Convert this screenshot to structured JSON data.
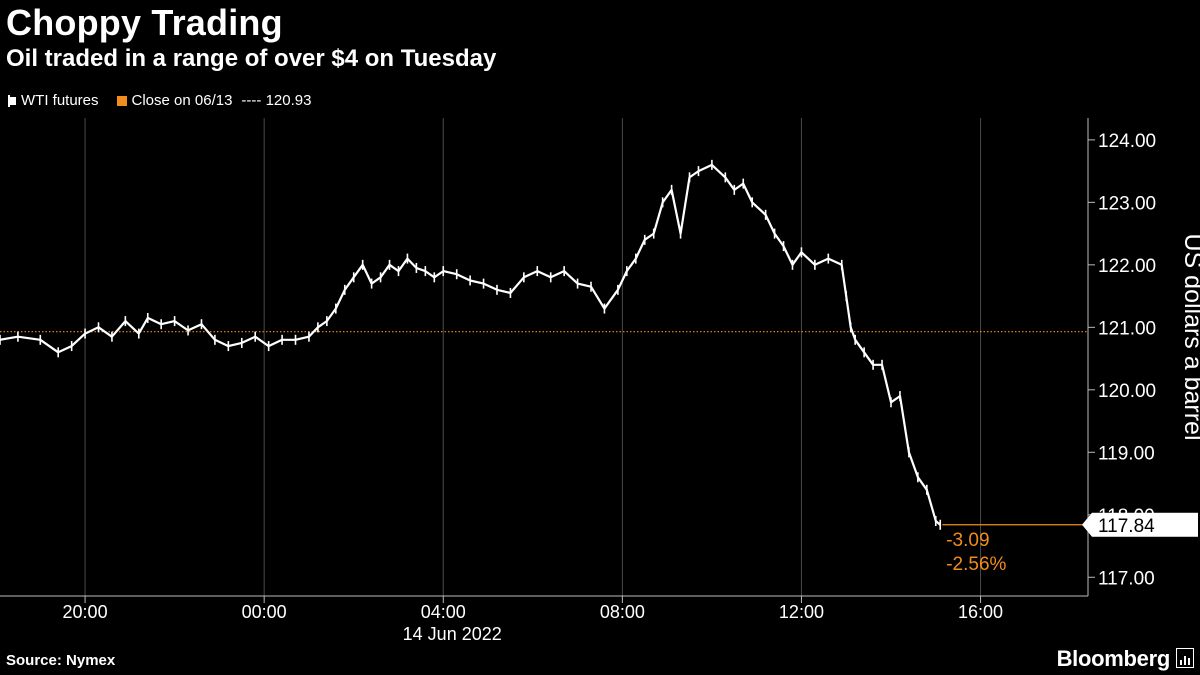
{
  "chart_data": {
    "type": "line",
    "title": "Choppy Trading",
    "subtitle": "Oil traded in a range of over $4 on Tuesday",
    "ylabel": "US dollars a barrel",
    "xlabel": "14 Jun 2022",
    "ylim": [
      116.7,
      124.35
    ],
    "y_ticks": [
      124,
      123,
      122,
      121,
      120,
      119,
      118,
      117
    ],
    "y_tick_labels": [
      "124.00",
      "123.00",
      "122.00",
      "121.00",
      "120.00",
      "119.00",
      "118.00",
      "117.00"
    ],
    "x_range_hours": [
      -5.9,
      18.4
    ],
    "x_ticks": [
      -4,
      0,
      4,
      8,
      12,
      16
    ],
    "x_tick_labels": [
      "20:00",
      "00:00",
      "04:00",
      "08:00",
      "12:00",
      "16:00"
    ],
    "series": [
      {
        "name": "WTI futures",
        "color": "#ffffff",
        "x": [
          -5.9,
          -5.5,
          -5.0,
          -4.6,
          -4.3,
          -4.0,
          -3.7,
          -3.4,
          -3.1,
          -2.8,
          -2.6,
          -2.3,
          -2.0,
          -1.7,
          -1.4,
          -1.1,
          -0.8,
          -0.5,
          -0.2,
          0.1,
          0.4,
          0.7,
          1.0,
          1.2,
          1.4,
          1.6,
          1.8,
          2.0,
          2.2,
          2.4,
          2.6,
          2.8,
          3.0,
          3.2,
          3.4,
          3.6,
          3.8,
          4.0,
          4.3,
          4.6,
          4.9,
          5.2,
          5.5,
          5.8,
          6.1,
          6.4,
          6.7,
          7.0,
          7.3,
          7.6,
          7.9,
          8.1,
          8.3,
          8.5,
          8.7,
          8.9,
          9.1,
          9.3,
          9.5,
          9.7,
          10.0,
          10.3,
          10.5,
          10.7,
          10.9,
          11.2,
          11.4,
          11.6,
          11.8,
          12.0,
          12.3,
          12.6,
          12.9,
          13.0,
          13.1,
          13.2,
          13.4,
          13.6,
          13.8,
          14.0,
          14.2,
          14.4,
          14.6,
          14.8,
          15.0,
          15.1
        ],
        "y": [
          120.8,
          120.85,
          120.8,
          120.6,
          120.7,
          120.9,
          121.0,
          120.85,
          121.1,
          120.9,
          121.15,
          121.05,
          121.1,
          120.95,
          121.05,
          120.8,
          120.7,
          120.75,
          120.85,
          120.7,
          120.8,
          120.8,
          120.85,
          121.0,
          121.1,
          121.3,
          121.6,
          121.8,
          122.0,
          121.7,
          121.8,
          122.0,
          121.9,
          122.1,
          121.95,
          121.9,
          121.8,
          121.9,
          121.85,
          121.75,
          121.7,
          121.6,
          121.55,
          121.8,
          121.9,
          121.8,
          121.9,
          121.7,
          121.65,
          121.3,
          121.6,
          121.9,
          122.1,
          122.4,
          122.5,
          123.0,
          123.2,
          122.5,
          123.4,
          123.5,
          123.6,
          123.4,
          123.2,
          123.3,
          123.0,
          122.8,
          122.5,
          122.3,
          122.0,
          122.2,
          122.0,
          122.1,
          122.0,
          121.5,
          121.0,
          120.8,
          120.6,
          120.4,
          120.4,
          119.8,
          119.9,
          119.0,
          118.6,
          118.4,
          117.9,
          117.84
        ]
      }
    ],
    "reference_line": {
      "label": "Close on 06/13",
      "value": 120.93,
      "value_label": "120.93",
      "color": "#f28c1e"
    },
    "last_value": 117.84,
    "last_value_label": "117.84",
    "change_label": "-3.09",
    "change_pct_label": "-2.56%",
    "accent_color": "#f28c1e",
    "grid": "vertical only at x ticks",
    "legend_placement": "top-left"
  },
  "header": {
    "title": "Choppy Trading",
    "subtitle": "Oil traded in a range of over $4 on Tuesday"
  },
  "legend": {
    "series_label": "WTI futures",
    "close_label": "Close on 06/13",
    "close_value_text": "---- 120.93"
  },
  "footer": {
    "source": "Source: Nymex",
    "brand": "Bloomberg"
  }
}
